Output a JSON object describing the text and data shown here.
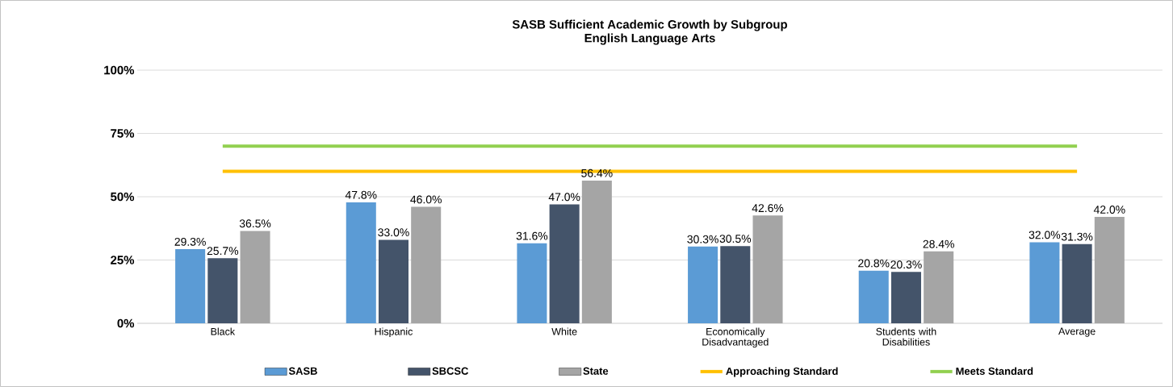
{
  "chart_data": {
    "type": "bar",
    "title": "SASB Sufficient Academic Growth by Subgroup",
    "subtitle": "English Language Arts",
    "categories": [
      "Black",
      "Hispanic",
      "White",
      "Economically Disadvantaged",
      "Students with Disabilities",
      "Average"
    ],
    "series": [
      {
        "name": "SASB",
        "color": "#5b9bd5",
        "values": [
          29.3,
          47.8,
          31.6,
          30.3,
          20.8,
          32.0
        ],
        "value_labels": [
          "29.3%",
          "47.8%",
          "31.6%",
          "30.3%",
          "20.8%",
          "32.0%"
        ]
      },
      {
        "name": "SBCSC",
        "color": "#44546a",
        "values": [
          25.7,
          33.0,
          47.0,
          30.5,
          20.3,
          31.3
        ],
        "value_labels": [
          "25.7%",
          "33.0%",
          "47.0%",
          "30.5%",
          "20.3%",
          "31.3%"
        ]
      },
      {
        "name": "State",
        "color": "#a5a5a5",
        "values": [
          36.5,
          46.0,
          56.4,
          42.6,
          28.4,
          42.0
        ],
        "value_labels": [
          "36.5%",
          "46.0%",
          "56.4%",
          "42.6%",
          "28.4%",
          "42.0%"
        ]
      }
    ],
    "ref_lines": [
      {
        "axis": "y",
        "value": 60,
        "label": "Approaching Standard",
        "color": "#ffc000"
      },
      {
        "axis": "y",
        "value": 70,
        "label": "Meets Standard",
        "color": "#92d050"
      }
    ],
    "ylim": [
      0,
      100
    ],
    "yticks": [
      {
        "value": 0,
        "label": "0%"
      },
      {
        "value": 25,
        "label": "25%"
      },
      {
        "value": 50,
        "label": "50%"
      },
      {
        "value": 75,
        "label": "75%"
      },
      {
        "value": 100,
        "label": "100%"
      }
    ],
    "grid": "y",
    "legend": "bottom"
  }
}
